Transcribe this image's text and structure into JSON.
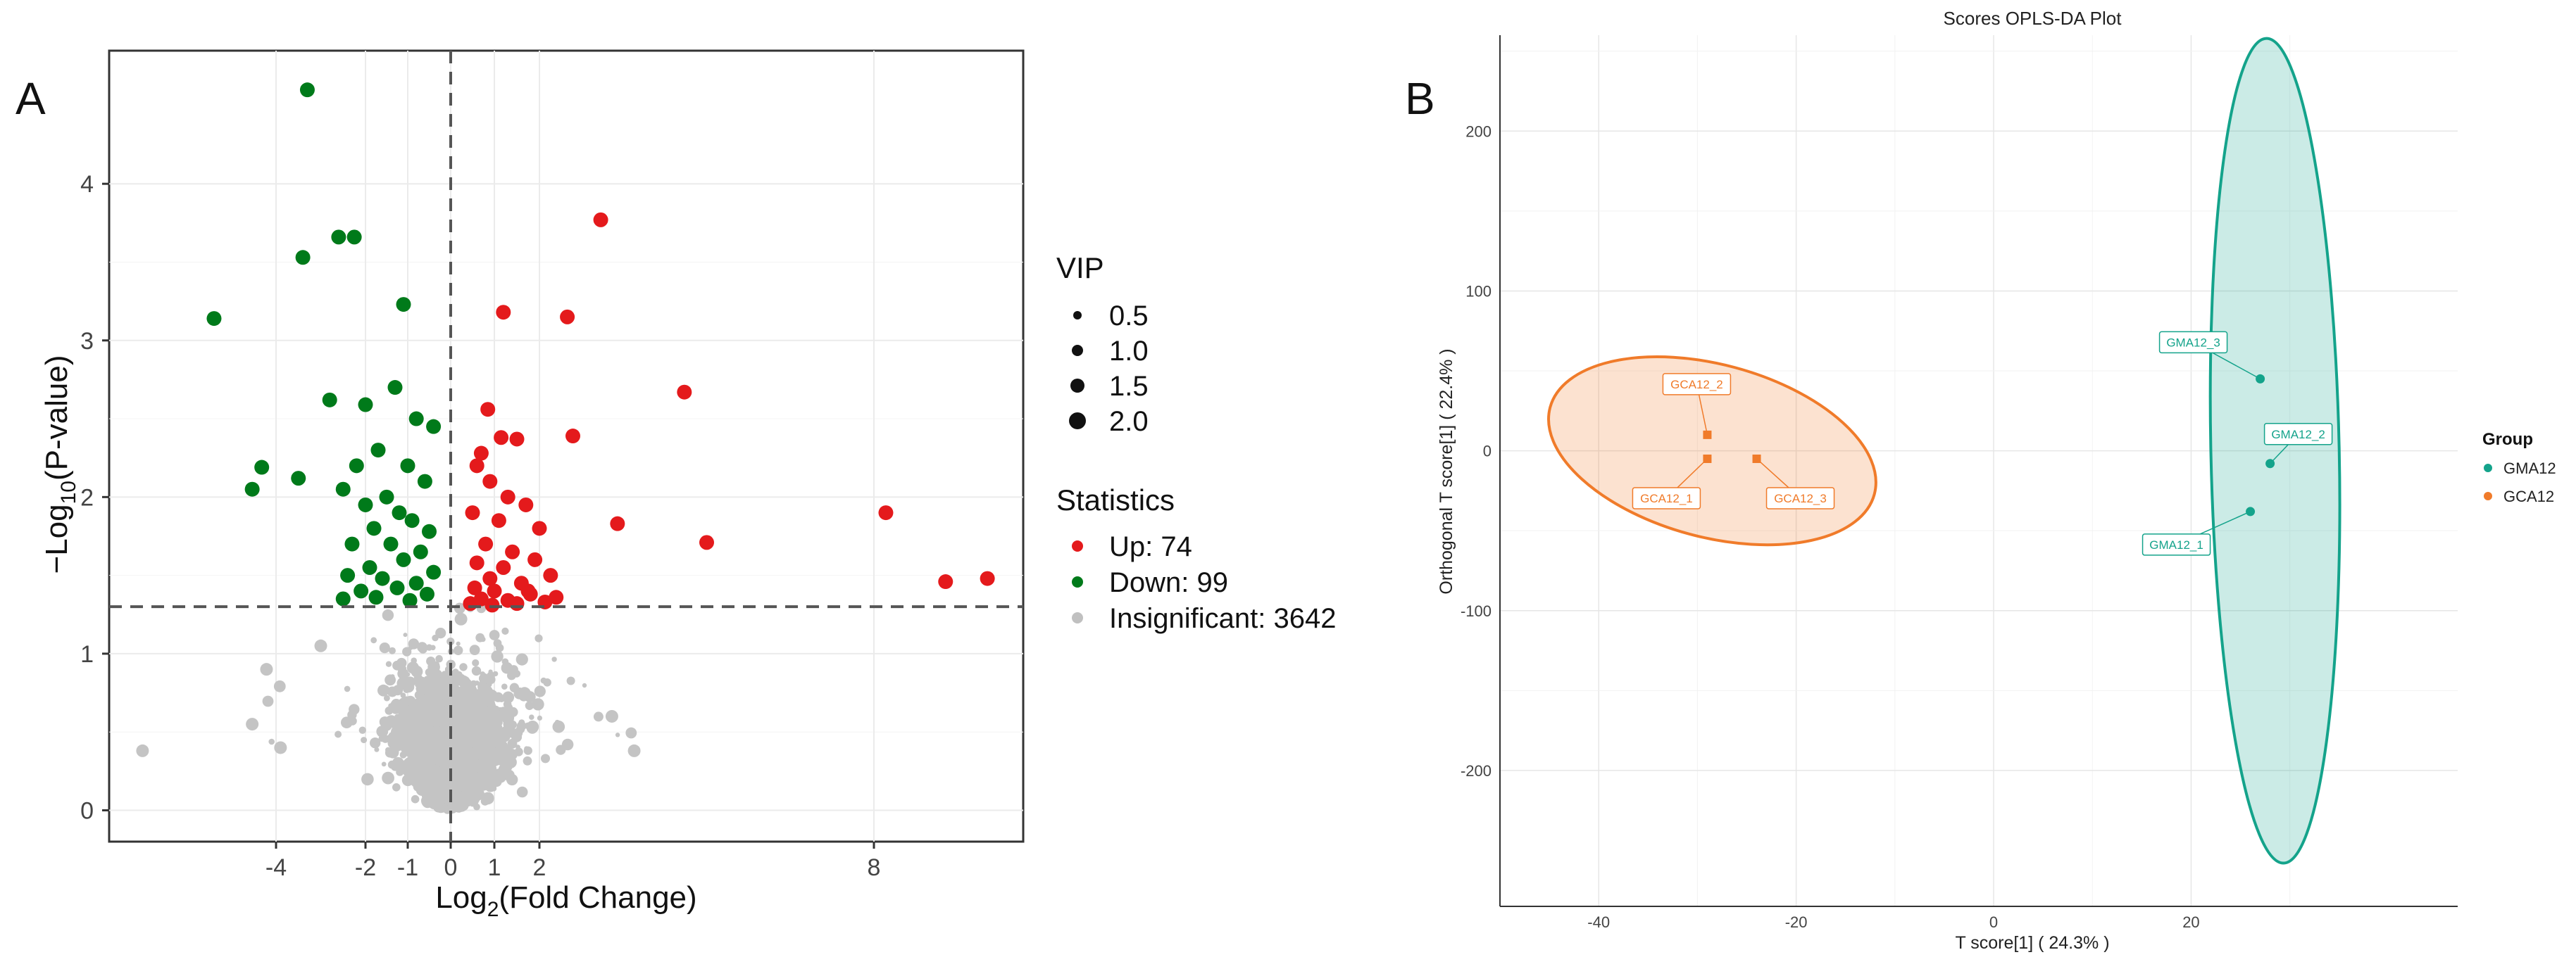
{
  "panels": {
    "a_label": "A",
    "b_label": "B"
  },
  "chart_data": [
    {
      "type": "scatter",
      "title": "",
      "xlabel_main": "Log",
      "xlabel_sub": "2",
      "xlabel_rest": "(Fold Change)",
      "ylabel_prefix": "−Log",
      "ylabel_sub": "10",
      "ylabel_rest": "(P-value)",
      "xlim": [
        -7.5,
        10.5
      ],
      "ylim": [
        -0.2,
        4.85
      ],
      "xticks": [
        -4,
        -2,
        -1,
        0,
        1,
        2,
        8
      ],
      "xtick_labels": [
        "-4",
        "-2",
        "-1",
        "0",
        "1",
        "2",
        "8"
      ],
      "yticks": [
        0,
        1,
        2,
        3,
        4
      ],
      "ytick_labels": [
        "0",
        "1",
        "2",
        "3",
        "4"
      ],
      "threshold_x": 0,
      "threshold_y": 1.3,
      "legend": {
        "vip_title": "VIP",
        "vip_items": [
          {
            "label": "0.5",
            "vip": 0.5
          },
          {
            "label": "1.0",
            "vip": 1.0
          },
          {
            "label": "1.5",
            "vip": 1.5
          },
          {
            "label": "2.0",
            "vip": 2.0
          }
        ],
        "stat_title": "Statistics",
        "stat_items": [
          {
            "label": "Up: 74",
            "color": "#e41a1c"
          },
          {
            "label": "Down: 99",
            "color": "#007a1a"
          },
          {
            "label": "Insignificant: 3642",
            "color": "#c0c0c0"
          }
        ]
      },
      "series": [
        {
          "name": "Up",
          "color": "#e41a1c",
          "points": [
            [
              3.1,
              3.77
            ],
            [
              1.2,
              3.18
            ],
            [
              2.5,
              3.15
            ],
            [
              4.6,
              2.67
            ],
            [
              0.85,
              2.56
            ],
            [
              2.6,
              2.39
            ],
            [
              1.15,
              2.38
            ],
            [
              1.5,
              2.37
            ],
            [
              0.7,
              2.28
            ],
            [
              3.4,
              1.83
            ],
            [
              5.0,
              1.71
            ],
            [
              8.2,
              1.9
            ],
            [
              9.2,
              1.46
            ],
            [
              9.9,
              1.48
            ],
            [
              0.6,
              2.2
            ],
            [
              0.9,
              2.1
            ],
            [
              1.3,
              2.0
            ],
            [
              1.7,
              1.95
            ],
            [
              0.5,
              1.9
            ],
            [
              1.1,
              1.85
            ],
            [
              2.0,
              1.8
            ],
            [
              0.8,
              1.7
            ],
            [
              1.4,
              1.65
            ],
            [
              1.9,
              1.6
            ],
            [
              0.6,
              1.58
            ],
            [
              1.2,
              1.55
            ],
            [
              2.2,
              1.5
            ],
            [
              0.9,
              1.48
            ],
            [
              1.6,
              1.45
            ],
            [
              0.55,
              1.42
            ],
            [
              1.0,
              1.4
            ],
            [
              1.8,
              1.38
            ],
            [
              2.3,
              1.36
            ],
            [
              0.7,
              1.35
            ],
            [
              1.3,
              1.34
            ],
            [
              2.1,
              1.33
            ],
            [
              0.45,
              1.32
            ],
            [
              1.5,
              1.32
            ],
            [
              0.95,
              1.31
            ],
            [
              1.75,
              1.4
            ]
          ]
        },
        {
          "name": "Down",
          "color": "#007a1a",
          "points": [
            [
              -3.3,
              4.6
            ],
            [
              -2.6,
              3.66
            ],
            [
              -2.25,
              3.66
            ],
            [
              -3.4,
              3.53
            ],
            [
              -5.3,
              3.14
            ],
            [
              -1.1,
              3.23
            ],
            [
              -2.8,
              2.62
            ],
            [
              -2.0,
              2.59
            ],
            [
              -1.3,
              2.7
            ],
            [
              -4.3,
              2.19
            ],
            [
              -4.5,
              2.05
            ],
            [
              -3.5,
              2.12
            ],
            [
              -0.4,
              2.45
            ],
            [
              -0.8,
              2.5
            ],
            [
              -2.5,
              2.05
            ],
            [
              -1.7,
              2.3
            ],
            [
              -1.0,
              2.2
            ],
            [
              -2.2,
              2.2
            ],
            [
              -0.6,
              2.1
            ],
            [
              -1.5,
              2.0
            ],
            [
              -2.0,
              1.95
            ],
            [
              -1.2,
              1.9
            ],
            [
              -0.9,
              1.85
            ],
            [
              -1.8,
              1.8
            ],
            [
              -0.5,
              1.78
            ],
            [
              -2.3,
              1.7
            ],
            [
              -1.4,
              1.7
            ],
            [
              -0.7,
              1.65
            ],
            [
              -1.1,
              1.6
            ],
            [
              -1.9,
              1.55
            ],
            [
              -0.4,
              1.52
            ],
            [
              -2.4,
              1.5
            ],
            [
              -1.6,
              1.48
            ],
            [
              -0.8,
              1.45
            ],
            [
              -1.25,
              1.42
            ],
            [
              -2.1,
              1.4
            ],
            [
              -0.55,
              1.38
            ],
            [
              -1.75,
              1.36
            ],
            [
              -0.95,
              1.34
            ],
            [
              -2.5,
              1.35
            ]
          ]
        }
      ]
    },
    {
      "type": "scatter",
      "title": "Scores OPLS-DA Plot",
      "xlabel": "T score[1] ( 24.3% )",
      "ylabel": "Orthogonal T score[1] ( 22.4% )",
      "xlim": [
        -50,
        47
      ],
      "ylim": [
        -285,
        260
      ],
      "xticks": [
        -40,
        -20,
        0,
        20
      ],
      "xtick_labels": [
        "-40",
        "-20",
        "0",
        "20"
      ],
      "yticks": [
        200,
        100,
        0,
        -100,
        -200
      ],
      "ytick_labels": [
        "200",
        "100",
        "0",
        "-100",
        "-200"
      ],
      "legend": {
        "title": "Group",
        "items": [
          {
            "label": "GMA12",
            "color": "#14a38b"
          },
          {
            "label": "GCA12",
            "color": "#f07b2a"
          }
        ]
      },
      "series": [
        {
          "name": "GMA12",
          "color": "#14a38b",
          "ellipse": {
            "center": [
              28.5,
              0
            ],
            "semi_x": 6.5,
            "semi_y": 258
          },
          "points": [
            {
              "label": "GMA12_3",
              "x": 27,
              "y": 45
            },
            {
              "label": "GMA12_2",
              "x": 28,
              "y": -8
            },
            {
              "label": "GMA12_1",
              "x": 26,
              "y": -38
            }
          ]
        },
        {
          "name": "GCA12",
          "color": "#f07b2a",
          "ellipse": {
            "center": [
              -28.5,
              0
            ],
            "semi_x": 17,
            "semi_y": 54
          },
          "points": [
            {
              "label": "GCA12_2",
              "x": -29,
              "y": 10
            },
            {
              "label": "GCA12_1",
              "x": -29,
              "y": -5
            },
            {
              "label": "GCA12_3",
              "x": -24,
              "y": -5
            }
          ]
        }
      ]
    }
  ]
}
